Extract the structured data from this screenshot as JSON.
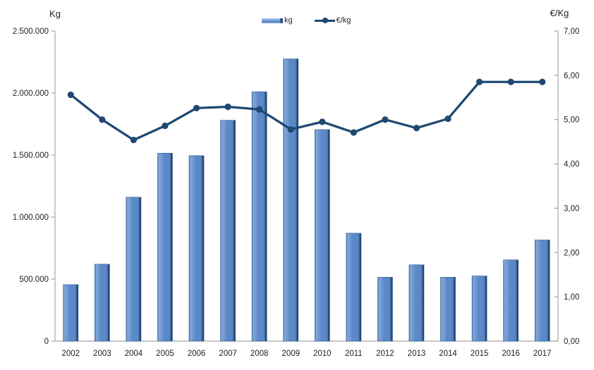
{
  "chart_data": {
    "type": "combo",
    "categories": [
      "2002",
      "2003",
      "2004",
      "2005",
      "2006",
      "2007",
      "2008",
      "2009",
      "2010",
      "2011",
      "2012",
      "2013",
      "2014",
      "2015",
      "2016",
      "2017"
    ],
    "series": [
      {
        "name": "kg",
        "type": "bar",
        "axis": "left",
        "values": [
          455000,
          620000,
          1160000,
          1515000,
          1495000,
          1780000,
          2010000,
          2275000,
          1705000,
          870000,
          515000,
          615000,
          515000,
          525000,
          655000,
          815000
        ]
      },
      {
        "name": "€/kg",
        "type": "line",
        "axis": "right",
        "values": [
          5.56,
          5.0,
          4.54,
          4.86,
          5.26,
          5.29,
          5.23,
          4.78,
          4.95,
          4.71,
          5.0,
          4.81,
          5.02,
          5.85,
          5.85,
          5.85
        ]
      }
    ],
    "left_axis": {
      "label": "Kg",
      "min": 0,
      "max": 2500000,
      "step": 500000,
      "tick_labels": [
        "0",
        "500.000",
        "1.000.000",
        "1.500.000",
        "2.000.000",
        "2.500.000"
      ]
    },
    "right_axis": {
      "label": "€/Kg",
      "min": 0,
      "max": 7,
      "step": 1,
      "tick_labels": [
        "0,00",
        "1,00",
        "2,00",
        "3,00",
        "4,00",
        "5,00",
        "6,00",
        "7,00"
      ]
    },
    "legend": {
      "position": "top",
      "entries": [
        "kg",
        "€/kg"
      ]
    },
    "grid": false,
    "colors": {
      "bar_edge_left": "#4d79b0",
      "bar_highlight": "#83a9da",
      "bar_body": "#5b88c7",
      "bar_deep": "#46719f",
      "bar_shadow": "#1e3e6a",
      "bar_border": "#3a6398",
      "line": "#1f4873",
      "axis": "#a6a6a6",
      "text": "#1f1f1f"
    }
  }
}
